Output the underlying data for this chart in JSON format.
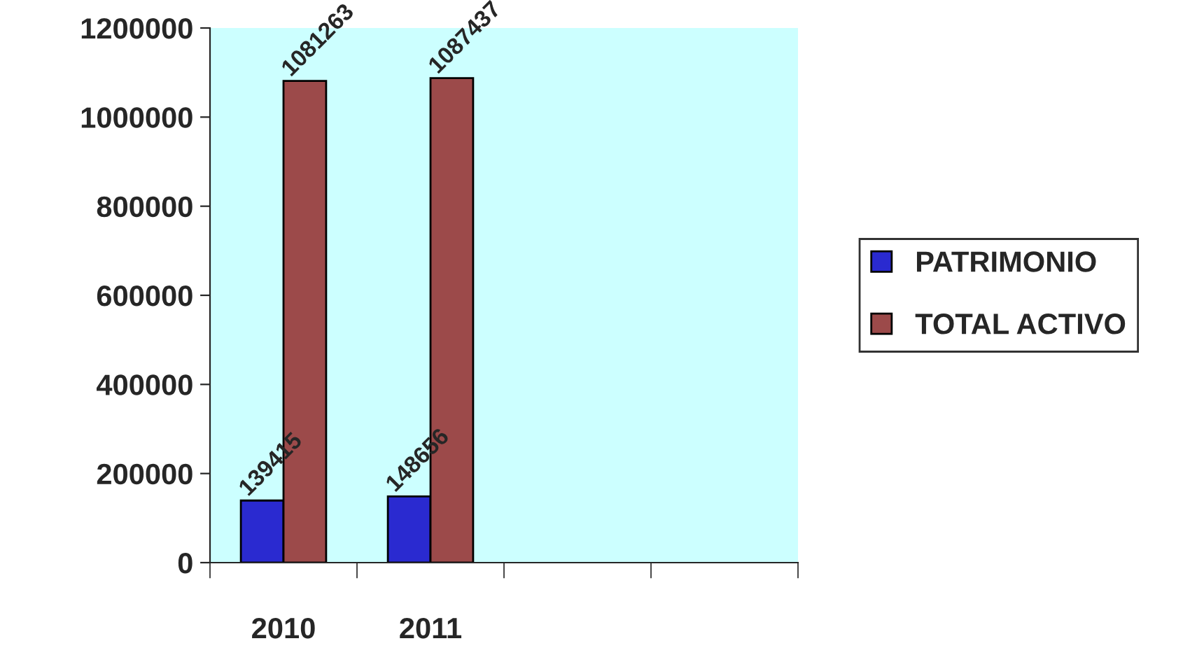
{
  "chart_data": {
    "type": "bar",
    "categories": [
      "2010",
      "2011",
      null,
      null
    ],
    "series": [
      {
        "name": "PATRIMONIO",
        "color": "#2a2ad0",
        "values": [
          139415,
          148656,
          null,
          null
        ]
      },
      {
        "name": "TOTAL ACTIVO",
        "color": "#9c4a4a",
        "values": [
          1081263,
          1087437,
          null,
          null
        ]
      }
    ],
    "ylim": [
      0,
      1200000
    ],
    "yticks": [
      0,
      200000,
      400000,
      600000,
      800000,
      1000000,
      1200000
    ],
    "grid": false,
    "legend": "right",
    "data_labels": true
  }
}
